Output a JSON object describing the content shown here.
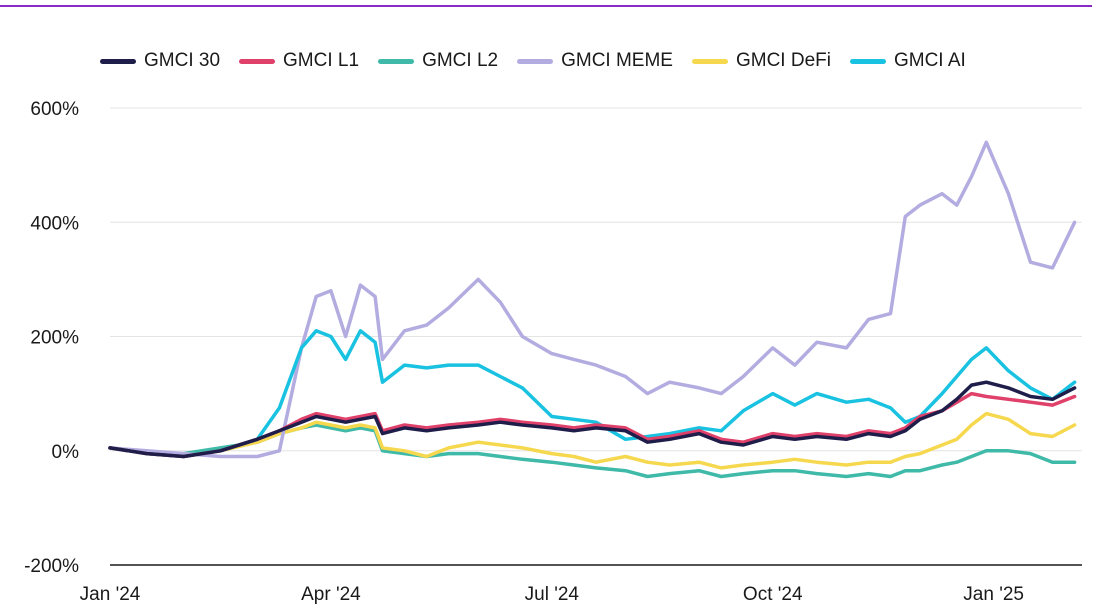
{
  "chart_data": {
    "type": "line",
    "title": "",
    "xlabel": "",
    "ylabel": "",
    "ylim": [
      -200,
      600
    ],
    "y_ticks": [
      600,
      400,
      200,
      0,
      -200
    ],
    "y_tick_labels": [
      "600%",
      "400%",
      "200%",
      "0%",
      "-200%"
    ],
    "x_tick_labels": [
      "Jan '24",
      "Apr '24",
      "Jul '24",
      "Oct '24",
      "Jan '25"
    ],
    "x_ticks_month_index": [
      0,
      3,
      6,
      9,
      12
    ],
    "x_range_months": [
      0,
      13.2
    ],
    "grid": "horizontal",
    "legend_position": "top",
    "x": [
      0.0,
      0.5,
      1.0,
      1.5,
      2.0,
      2.3,
      2.6,
      2.8,
      3.0,
      3.2,
      3.4,
      3.6,
      3.7,
      4.0,
      4.3,
      4.6,
      5.0,
      5.3,
      5.6,
      6.0,
      6.3,
      6.6,
      7.0,
      7.3,
      7.6,
      8.0,
      8.3,
      8.6,
      9.0,
      9.3,
      9.6,
      10.0,
      10.3,
      10.6,
      10.8,
      11.0,
      11.3,
      11.5,
      11.7,
      11.9,
      12.2,
      12.5,
      12.8,
      13.1
    ],
    "series": [
      {
        "name": "GMCI 30",
        "color": "#1f1d4a",
        "values": [
          5,
          -5,
          -10,
          0,
          20,
          35,
          50,
          60,
          55,
          50,
          55,
          60,
          30,
          40,
          35,
          40,
          45,
          50,
          45,
          40,
          35,
          40,
          35,
          15,
          20,
          30,
          15,
          10,
          25,
          20,
          25,
          20,
          30,
          25,
          35,
          55,
          70,
          90,
          115,
          120,
          110,
          95,
          90,
          110
        ]
      },
      {
        "name": "GMCI L1",
        "color": "#e0416b",
        "values": [
          5,
          -5,
          -10,
          0,
          20,
          35,
          55,
          65,
          60,
          55,
          60,
          65,
          35,
          45,
          40,
          45,
          50,
          55,
          50,
          45,
          40,
          45,
          40,
          20,
          25,
          35,
          20,
          15,
          30,
          25,
          30,
          25,
          35,
          30,
          40,
          60,
          70,
          85,
          100,
          95,
          90,
          85,
          80,
          95
        ]
      },
      {
        "name": "GMCI L2",
        "color": "#3fb9a8",
        "values": [
          5,
          -5,
          -5,
          5,
          15,
          30,
          40,
          45,
          40,
          35,
          40,
          35,
          0,
          -5,
          -10,
          -5,
          -5,
          -10,
          -15,
          -20,
          -25,
          -30,
          -35,
          -45,
          -40,
          -35,
          -45,
          -40,
          -35,
          -35,
          -40,
          -45,
          -40,
          -45,
          -35,
          -35,
          -25,
          -20,
          -10,
          0,
          0,
          -5,
          -20,
          -20
        ]
      },
      {
        "name": "GMCI MEME",
        "color": "#b3ace0",
        "values": [
          5,
          0,
          -5,
          -10,
          -10,
          0,
          180,
          270,
          280,
          200,
          290,
          270,
          160,
          210,
          220,
          250,
          300,
          260,
          200,
          170,
          160,
          150,
          130,
          100,
          120,
          110,
          100,
          130,
          180,
          150,
          190,
          180,
          230,
          240,
          410,
          430,
          450,
          430,
          480,
          540,
          450,
          330,
          320,
          400
        ]
      },
      {
        "name": "GMCI DeFi",
        "color": "#f6d84f",
        "values": [
          5,
          -5,
          -10,
          0,
          15,
          30,
          40,
          50,
          45,
          40,
          45,
          40,
          5,
          0,
          -10,
          5,
          15,
          10,
          5,
          -5,
          -10,
          -20,
          -10,
          -20,
          -25,
          -20,
          -30,
          -25,
          -20,
          -15,
          -20,
          -25,
          -20,
          -20,
          -10,
          -5,
          10,
          20,
          45,
          65,
          55,
          30,
          25,
          45
        ]
      },
      {
        "name": "GMCI AI",
        "color": "#19c2e0",
        "values": [
          5,
          -5,
          -10,
          0,
          20,
          75,
          180,
          210,
          200,
          160,
          210,
          190,
          120,
          150,
          145,
          150,
          150,
          130,
          110,
          60,
          55,
          50,
          20,
          25,
          30,
          40,
          35,
          70,
          100,
          80,
          100,
          85,
          90,
          75,
          50,
          60,
          100,
          130,
          160,
          180,
          140,
          110,
          90,
          120
        ]
      }
    ]
  }
}
